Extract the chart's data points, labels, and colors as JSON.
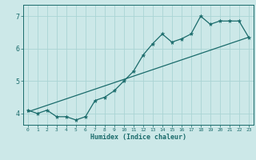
{
  "xlabel": "Humidex (Indice chaleur)",
  "ylabel": "",
  "background_color": "#cce8e8",
  "grid_color": "#aad4d4",
  "line_color": "#1a6b6b",
  "xlim": [
    -0.5,
    23.5
  ],
  "ylim": [
    3.65,
    7.35
  ],
  "yticks": [
    4,
    5,
    6,
    7
  ],
  "xticks": [
    0,
    1,
    2,
    3,
    4,
    5,
    6,
    7,
    8,
    9,
    10,
    11,
    12,
    13,
    14,
    15,
    16,
    17,
    18,
    19,
    20,
    21,
    22,
    23
  ],
  "data_x": [
    0,
    1,
    2,
    3,
    4,
    5,
    6,
    7,
    8,
    9,
    10,
    11,
    12,
    13,
    14,
    15,
    16,
    17,
    18,
    19,
    20,
    21,
    22,
    23
  ],
  "data_y": [
    4.1,
    4.0,
    4.1,
    3.9,
    3.9,
    3.8,
    3.9,
    4.4,
    4.5,
    4.7,
    5.0,
    5.3,
    5.8,
    6.15,
    6.45,
    6.2,
    6.3,
    6.45,
    7.0,
    6.75,
    6.85,
    6.85,
    6.85,
    6.35
  ],
  "trend_x": [
    0,
    23
  ],
  "trend_y": [
    4.05,
    6.35
  ]
}
